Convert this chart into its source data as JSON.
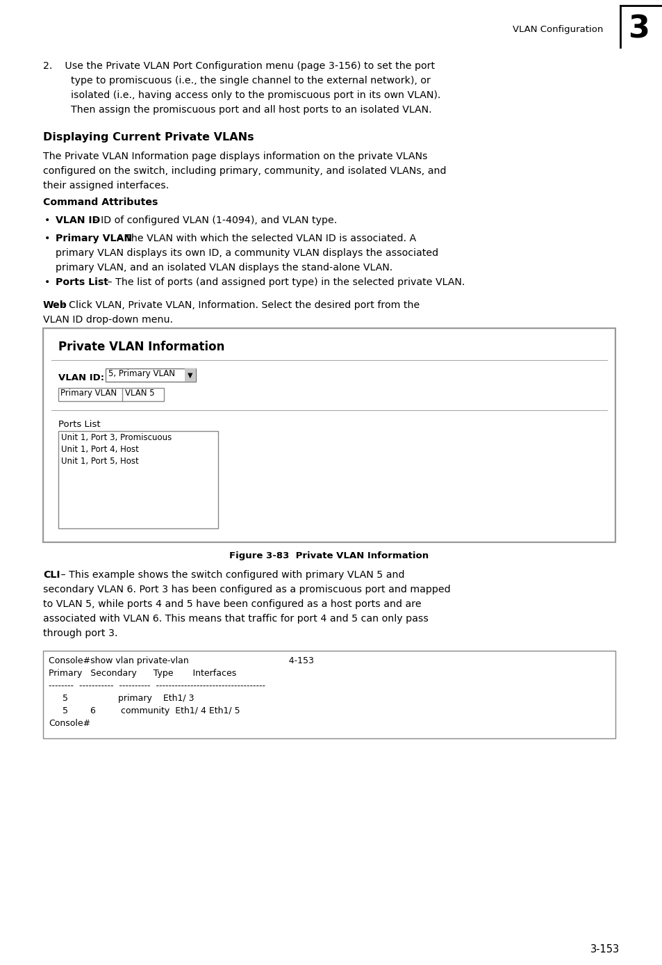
{
  "page_bg": "#ffffff",
  "header_text": "VLAN Configuration",
  "header_number": "3",
  "section_title": "Displaying Current Private VLANs",
  "figure_caption": "Figure 3-83  Private VLAN Information",
  "footer_text": "3-153",
  "cli_box_lines": [
    "Console#show vlan private-vlan                                    4-153",
    "Primary   Secondary      Type       Interfaces",
    "--------  -----------  ----------  -----------------------------------",
    "     5                  primary    Eth1/ 3",
    "     5        6         community  Eth1/ 4 Eth1/ 5",
    "Console#"
  ],
  "ports_list": [
    "Unit 1, Port 3, Promiscuous",
    "Unit 1, Port 4, Host",
    "Unit 1, Port 5, Host"
  ]
}
